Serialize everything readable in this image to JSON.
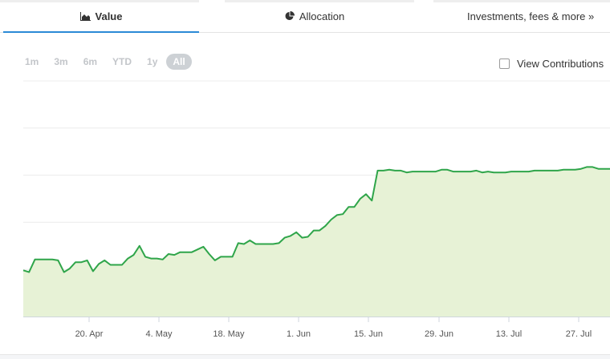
{
  "tabs": [
    {
      "label": "Value",
      "icon": "area-chart-icon",
      "active": true
    },
    {
      "label": "Allocation",
      "icon": "pie-chart-icon",
      "active": false
    },
    {
      "label": "Investments, fees & more »",
      "icon": "",
      "active": false
    }
  ],
  "ranges": [
    "1m",
    "3m",
    "6m",
    "YTD",
    "1y",
    "All"
  ],
  "active_range": "All",
  "view_contributions": {
    "label": "View Contributions",
    "checked": false
  },
  "colors": {
    "line": "#2fa54a",
    "fill": "#e7f2d6",
    "grid": "#ececec",
    "accent": "#2b8ad6"
  },
  "chart_data": {
    "type": "area",
    "x_tick_labels": [
      "20. Apr",
      "4. May",
      "18. May",
      "1. Jun",
      "15. Jun",
      "29. Jun",
      "13. Jul",
      "27. Jul"
    ],
    "grid": true,
    "y_tick_labels_visible": false,
    "x": [
      0,
      1,
      2,
      3,
      4,
      5,
      6,
      7,
      8,
      9,
      10,
      11,
      12,
      13,
      14,
      15,
      16,
      17,
      18,
      19,
      20,
      21,
      22,
      23,
      24,
      25,
      26,
      27,
      28,
      29,
      30,
      31,
      32,
      33,
      34,
      35,
      36,
      37,
      38,
      39,
      40,
      41,
      42,
      43,
      44,
      45,
      46,
      47,
      48,
      49,
      50,
      51,
      52,
      53,
      54,
      55,
      56,
      57,
      58,
      59,
      60,
      61,
      62,
      63,
      64,
      65,
      66,
      67,
      68,
      69,
      70,
      71,
      72,
      73,
      74,
      75,
      76,
      77,
      78,
      79,
      80,
      81,
      82,
      83,
      84,
      85,
      86,
      87,
      88,
      89,
      90,
      91,
      92,
      93,
      94,
      95,
      96,
      97,
      98,
      99,
      100,
      101
    ],
    "series": [
      {
        "values": [
          51,
          49,
          63,
          63,
          63,
          63,
          62,
          49,
          53,
          60,
          60,
          62,
          50,
          58,
          62,
          57,
          57,
          57,
          64,
          68,
          78,
          66,
          64,
          64,
          63,
          69,
          68,
          71,
          71,
          71,
          74,
          77,
          69,
          62,
          66,
          66,
          66,
          81,
          80,
          84,
          80,
          80,
          80,
          80,
          81,
          87,
          89,
          93,
          87,
          88,
          95,
          95,
          100,
          107,
          112,
          113,
          121,
          121,
          130,
          135,
          128,
          161,
          161,
          162,
          161,
          161,
          159,
          160,
          160,
          160,
          160,
          160,
          162,
          162,
          160,
          160,
          160,
          160,
          161,
          159,
          160,
          159,
          159,
          159,
          160,
          160,
          160,
          160,
          161,
          161,
          161,
          161,
          161,
          162,
          162,
          162,
          163,
          165,
          165,
          163,
          163,
          163
        ]
      }
    ],
    "ylim": [
      0,
      260
    ]
  }
}
